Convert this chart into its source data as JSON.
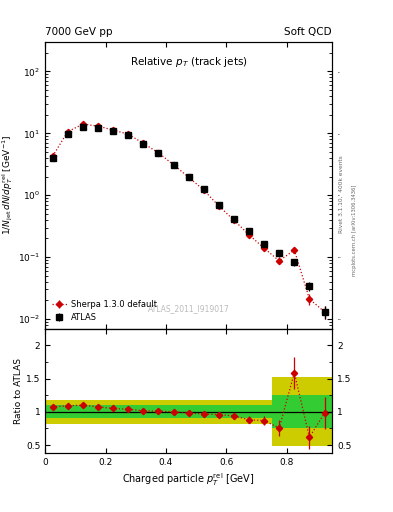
{
  "header_left": "7000 GeV pp",
  "header_right": "Soft QCD",
  "watermark": "ATLAS_2011_I919017",
  "right_label_top": "Rivet 3.1.10,  400k events",
  "right_label_bot": "mcplots.cern.ch [arXiv:1306.3436]",
  "xlabel": "Charged particle $p_T^{rel}$ [GeV]",
  "ylabel_main": "1/N$_{jet}$ dN/dp$_T^{rel}$ [GeV",
  "ylabel_ratio": "Ratio to ATLAS",
  "title_plot": "Relative $p_T$ (track jets)",
  "xlim": [
    0.0,
    0.95
  ],
  "ylim_main": [
    0.007,
    300
  ],
  "ylim_ratio": [
    0.38,
    2.25
  ],
  "atlas_x": [
    0.025,
    0.075,
    0.125,
    0.175,
    0.225,
    0.275,
    0.325,
    0.375,
    0.425,
    0.475,
    0.525,
    0.575,
    0.625,
    0.675,
    0.725,
    0.775,
    0.825,
    0.875,
    0.925
  ],
  "atlas_y": [
    4.0,
    9.8,
    12.8,
    12.2,
    10.8,
    9.3,
    6.8,
    4.8,
    3.1,
    2.0,
    1.25,
    0.7,
    0.42,
    0.26,
    0.16,
    0.115,
    0.082,
    0.034,
    0.013
  ],
  "atlas_yerr": [
    0.35,
    0.45,
    0.55,
    0.5,
    0.45,
    0.38,
    0.3,
    0.25,
    0.18,
    0.13,
    0.09,
    0.055,
    0.035,
    0.022,
    0.016,
    0.013,
    0.011,
    0.006,
    0.003
  ],
  "sherpa_x": [
    0.025,
    0.075,
    0.125,
    0.175,
    0.225,
    0.275,
    0.325,
    0.375,
    0.425,
    0.475,
    0.525,
    0.575,
    0.625,
    0.675,
    0.725,
    0.775,
    0.825,
    0.875,
    0.925
  ],
  "sherpa_y": [
    4.3,
    10.7,
    14.1,
    13.1,
    11.3,
    9.7,
    6.9,
    4.85,
    3.1,
    1.96,
    1.21,
    0.67,
    0.395,
    0.229,
    0.139,
    0.087,
    0.13,
    0.021,
    0.013
  ],
  "sherpa_yerr": [
    0.15,
    0.25,
    0.3,
    0.28,
    0.22,
    0.18,
    0.13,
    0.11,
    0.08,
    0.06,
    0.04,
    0.025,
    0.016,
    0.01,
    0.007,
    0.009,
    0.012,
    0.004,
    0.003
  ],
  "ratio_y": [
    1.075,
    1.09,
    1.1,
    1.075,
    1.05,
    1.04,
    1.015,
    1.01,
    1.0,
    0.98,
    0.968,
    0.957,
    0.94,
    0.88,
    0.869,
    0.757,
    1.585,
    0.618,
    0.982
  ],
  "ratio_yerr": [
    0.04,
    0.03,
    0.028,
    0.028,
    0.025,
    0.024,
    0.02,
    0.018,
    0.018,
    0.022,
    0.025,
    0.033,
    0.038,
    0.055,
    0.068,
    0.115,
    0.245,
    0.175,
    0.24
  ],
  "atlas_color": "#000000",
  "sherpa_color": "#cc0000",
  "green_color": "#33cc33",
  "yellow_color": "#cccc00",
  "band1_xlo": 0.0,
  "band1_xhi": 0.75,
  "band1_green_lo": 0.9,
  "band1_green_hi": 1.1,
  "band1_yellow_lo": 0.82,
  "band1_yellow_hi": 1.18,
  "band2_xlo": 0.75,
  "band2_xhi": 0.975,
  "band2_green_lo": 0.75,
  "band2_green_hi": 1.25,
  "band2_yellow_lo": 0.48,
  "band2_yellow_hi": 1.52
}
